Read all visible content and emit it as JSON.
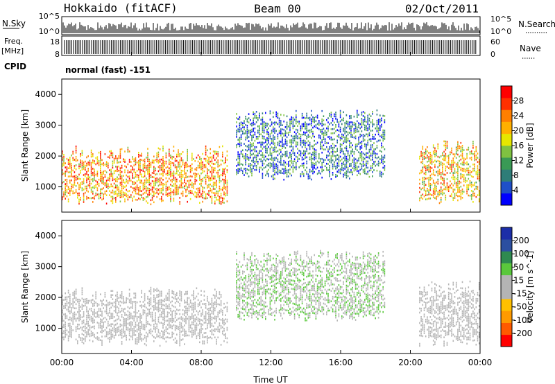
{
  "header": {
    "station": "Hokkaido (fitACF)",
    "beam": "Beam 00",
    "date": "02/Oct/2011"
  },
  "nsky_panel": {
    "left_label": "N.Sky",
    "right_label": "N.Search",
    "left_ticks": [
      "10^5",
      "10^0"
    ],
    "right_ticks": [
      "10^5",
      "10^0"
    ]
  },
  "freq_panel": {
    "left_label_1": "Freq.",
    "left_label_2": "[MHz]",
    "right_label": "Nave",
    "left_ticks": [
      "18",
      "8"
    ],
    "right_ticks": [
      "60",
      "0"
    ]
  },
  "cpid": {
    "label": "CPID",
    "value": "normal (fast) -151"
  },
  "colors": {
    "power_scale": [
      "#0000ff",
      "#1f4fc8",
      "#2e7d78",
      "#3a9a55",
      "#7fc241",
      "#e6e600",
      "#ffb000",
      "#ff7f00",
      "#ff3000",
      "#ff0000"
    ],
    "velocity_scale": [
      "#ff0000",
      "#ff5a00",
      "#ff9a00",
      "#ffc000",
      "#b4b4b4",
      "#b4b4b4",
      "#5ac83c",
      "#2e8a50",
      "#2c4fa0",
      "#1c2ea8"
    ]
  },
  "chart_data": [
    {
      "type": "heatmap",
      "title": "",
      "xlabel": "",
      "ylabel": "Slant Range [km]",
      "x_range": [
        "00:00",
        "24:00"
      ],
      "ylim": [
        180,
        4500
      ],
      "y_ticks": [
        "1000",
        "2000",
        "3000",
        "4000"
      ],
      "colorbar": {
        "label": "Power [dB]",
        "range": [
          0,
          32
        ],
        "ticks": [
          "4",
          "8",
          "12",
          "16",
          "20",
          "24",
          "28"
        ]
      },
      "echo_regions": [
        {
          "time_start": "00:00",
          "time_end": "09:30",
          "range_low_km": 600,
          "range_high_km": 2100,
          "power_db": 22
        },
        {
          "time_start": "10:00",
          "time_end": "18:30",
          "range_low_km": 1400,
          "range_high_km": 3300,
          "power_db": 8
        },
        {
          "time_start": "20:30",
          "time_end": "24:00",
          "range_low_km": 600,
          "range_high_km": 2300,
          "power_db": 20
        }
      ]
    },
    {
      "type": "heatmap",
      "title": "",
      "xlabel": "Time UT",
      "ylabel": "Slant Range [km]",
      "x_range": [
        "00:00",
        "24:00"
      ],
      "x_ticks": [
        "00:00",
        "04:00",
        "08:00",
        "12:00",
        "16:00",
        "20:00",
        "00:00"
      ],
      "ylim": [
        180,
        4500
      ],
      "y_ticks": [
        "1000",
        "2000",
        "3000",
        "4000"
      ],
      "colorbar": {
        "label": "Velocity [m s^-1]",
        "range": [
          -250,
          250
        ],
        "ticks": [
          "200",
          "100",
          "50",
          "15",
          "-15",
          "-50",
          "-100",
          "-200"
        ]
      },
      "echo_regions": [
        {
          "time_start": "00:00",
          "time_end": "09:30",
          "range_low_km": 600,
          "range_high_km": 2100,
          "velocity_ms": 0
        },
        {
          "time_start": "10:00",
          "time_end": "18:30",
          "range_low_km": 1400,
          "range_high_km": 3300,
          "velocity_ms": 40
        },
        {
          "time_start": "20:30",
          "time_end": "24:00",
          "range_low_km": 600,
          "range_high_km": 2300,
          "velocity_ms": 0
        }
      ]
    }
  ]
}
